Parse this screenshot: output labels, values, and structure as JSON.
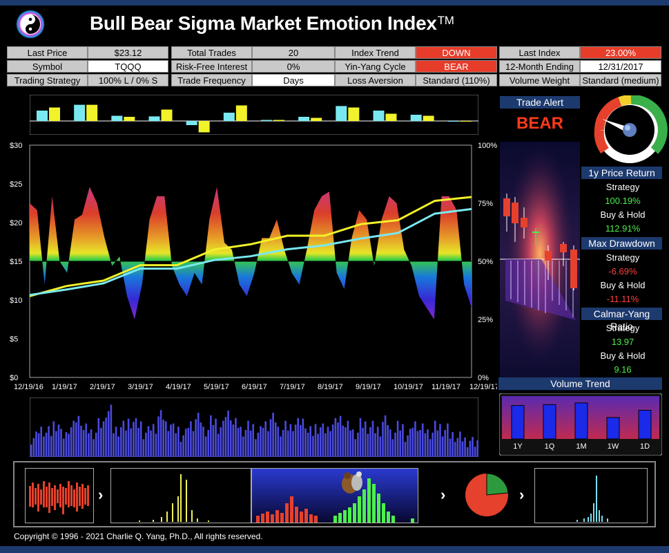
{
  "app": {
    "title": "Bull Bear Sigma Market Emotion Index",
    "title_mark": "TM",
    "copyright": "Copyright © 1996 - 2021 Charlie Q. Yang, Ph.D., All rights reserved."
  },
  "info": {
    "last_price_label": "Last Price",
    "last_price": "$23.12",
    "total_trades_label": "Total Trades",
    "total_trades": "20",
    "index_trend_label": "Index Trend",
    "index_trend": "DOWN",
    "last_index_label": "Last Index",
    "last_index": "23.00%",
    "symbol_label": "Symbol",
    "symbol": "TQQQ",
    "risk_free_label": "Risk-Free Interest",
    "risk_free": "0%",
    "yin_yang_label": "Yin-Yang Cycle",
    "yin_yang": "BEAR",
    "ending_label": "12-Month Ending",
    "ending": "12/31/2017",
    "strategy_label": "Trading Strategy",
    "strategy": "100% L / 0% S",
    "frequency_label": "Trade Frequency",
    "frequency": "Days",
    "loss_aversion_label": "Loss Aversion",
    "loss_aversion": "Standard (110%)",
    "volume_weight_label": "Volume Weight",
    "volume_weight": "Standard (medium)"
  },
  "alert": {
    "title": "Trade Alert",
    "value": "BEAR"
  },
  "stats": {
    "price_return_title": "1y Price Return",
    "strategy_label": "Strategy",
    "buyhold_label": "Buy & Hold",
    "price_return_strategy": "100.19%",
    "price_return_buyhold": "112.91%",
    "drawdown_title": "Max Drawdown",
    "drawdown_strategy": "-6.69%",
    "drawdown_buyhold": "-11.11%",
    "calmar_title": "Calmar-Yang Ratio",
    "calmar_strategy": "13.97",
    "calmar_buyhold": "9.16"
  },
  "volume_trend": {
    "title": "Volume Trend",
    "labels": [
      "1Y",
      "1Q",
      "1M",
      "1W",
      "1D"
    ],
    "values": [
      0.78,
      0.8,
      0.84,
      0.5,
      0.67
    ]
  },
  "chart_data": {
    "type": "line",
    "x_ticks": [
      "12/19/16",
      "1/19/17",
      "2/19/17",
      "3/19/17",
      "4/19/17",
      "5/19/17",
      "6/19/17",
      "7/19/17",
      "8/19/17",
      "9/19/17",
      "10/19/17",
      "11/19/17",
      "12/19/17"
    ],
    "y_left_ticks": [
      "$30",
      "$25",
      "$20",
      "$15",
      "$10",
      "$5",
      "$0"
    ],
    "y_right_ticks": [
      "100%",
      "75%",
      "50%",
      "25%",
      "0%"
    ],
    "ylim_left": [
      0,
      30
    ],
    "ylim_right": [
      0,
      100
    ],
    "series": [
      {
        "values_idx": [
          0,
          5,
          10,
          15,
          20,
          25,
          30,
          35,
          40,
          45,
          50,
          55,
          60
        ],
        "values": [
          10.8,
          11.5,
          12.8,
          14.2,
          14.8,
          16.2,
          17.5,
          18.0,
          18.6,
          19.5,
          20.6,
          22.5,
          23.6
        ]
      },
      {
        "values_idx": [
          0,
          5,
          10,
          15,
          20,
          25,
          30,
          35,
          40,
          45,
          50,
          55,
          60
        ],
        "values": [
          10.8,
          11.2,
          12.3,
          13.9,
          14.2,
          15.0,
          15.8,
          16.4,
          17.2,
          17.8,
          18.8,
          21.0,
          21.9
        ]
      }
    ],
    "index": [
      75,
      72,
      40,
      78,
      50,
      45,
      68,
      70,
      82,
      75,
      60,
      48,
      52,
      35,
      25,
      40,
      68,
      78,
      78,
      48,
      40,
      35,
      45,
      40,
      68,
      82,
      58,
      55,
      40,
      35,
      45,
      60,
      60,
      68,
      55,
      45,
      40,
      55,
      72,
      78,
      80,
      45,
      38,
      60,
      72,
      68,
      48,
      68,
      78,
      75,
      55,
      48,
      35,
      30,
      25,
      78,
      78,
      72,
      40,
      30
    ],
    "mini_bars": [
      [
        0.5,
        0.65
      ],
      [
        0.78,
        0.78
      ],
      [
        0.25,
        0.2
      ],
      [
        0.22,
        0.55
      ],
      [
        -0.2,
        -0.55
      ],
      [
        0.4,
        0.75
      ],
      [
        0.05,
        0.05
      ],
      [
        0.2,
        0.15
      ],
      [
        0.72,
        0.65
      ],
      [
        0.5,
        0.35
      ],
      [
        0.3,
        0.25
      ],
      [
        0.0,
        0.0
      ]
    ],
    "volume": [
      0.35,
      0.5,
      0.45,
      0.6,
      0.4,
      0.55,
      0.7,
      0.5,
      0.45,
      0.6,
      0.85,
      0.5,
      0.55,
      0.65,
      0.6,
      0.45,
      0.55,
      0.75,
      0.6,
      0.5,
      0.4,
      0.6,
      0.7,
      0.5,
      0.65,
      0.55,
      0.8,
      0.6,
      0.5,
      0.55,
      0.45,
      0.6,
      0.7,
      0.5,
      0.55,
      0.6,
      0.65,
      0.45,
      0.55,
      0.5,
      0.6,
      0.7,
      0.55,
      0.45,
      0.6,
      0.55,
      0.5,
      0.65,
      0.45,
      0.55,
      0.4,
      0.6,
      0.5,
      0.45,
      0.55,
      0.5,
      0.4,
      0.35,
      0.3,
      0.25
    ]
  },
  "thumbs": {
    "buttons": [
      "›",
      "›",
      "›"
    ]
  }
}
